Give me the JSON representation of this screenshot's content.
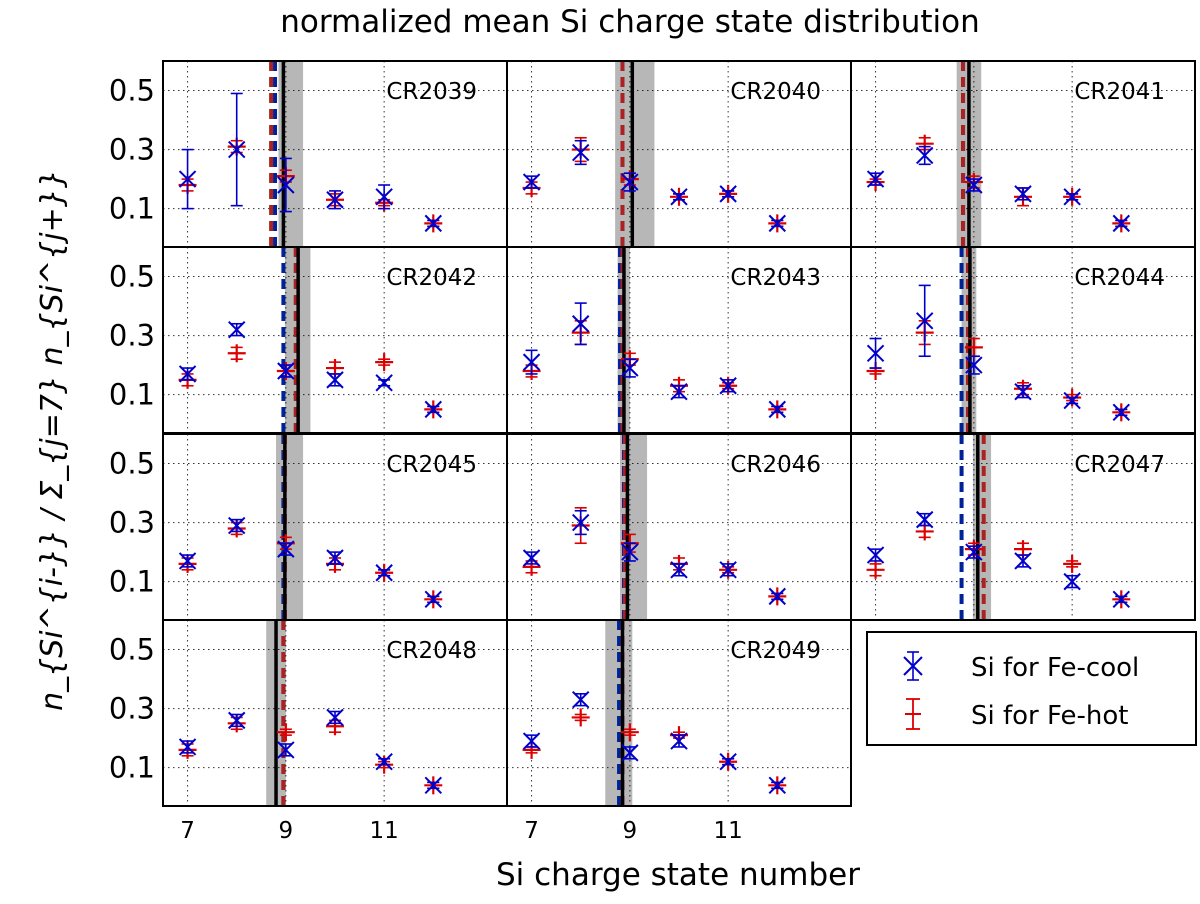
{
  "chart_data": {
    "type": "scatter",
    "title": "normalized mean Si charge state distribution",
    "xlabel": "Si charge state number",
    "ylabel": "n_{Si^{i-}} / Σ_{j=7} n_{Si^{j+}}",
    "xlim": [
      6.5,
      13.5
    ],
    "ylim": [
      -0.03,
      0.6
    ],
    "yticks": [
      0.1,
      0.3,
      0.5
    ],
    "ytick_labels": [
      "0.1",
      "0.3",
      "0.5"
    ],
    "xticks": [
      7,
      9,
      11
    ],
    "xtick_labels": [
      "7",
      "9",
      "11"
    ],
    "x_categories": [
      7,
      8,
      9,
      10,
      11,
      12
    ],
    "grid": true,
    "legend": {
      "position": "bottom-right",
      "entries": [
        {
          "name": "Si for Fe-cool",
          "marker": "x",
          "color": "#0000cc"
        },
        {
          "name": "Si for Fe-hot",
          "marker": "+",
          "color": "#dd0000"
        }
      ]
    },
    "colors": {
      "cool": "#0000cc",
      "hot": "#dd0000",
      "band": "#aaaaaa"
    },
    "panels": [
      {
        "label": "CR2039",
        "black": 8.95,
        "band": [
          8.85,
          9.35
        ],
        "blue_dash": 8.78,
        "red_dash": 8.7,
        "cool": [
          [
            0.2,
            0.1
          ],
          [
            0.3,
            0.19
          ],
          [
            0.18,
            0.09
          ],
          [
            0.13,
            0.03
          ],
          [
            0.14,
            0.04
          ],
          [
            0.05,
            0.01
          ]
        ],
        "hot": [
          [
            0.18,
            0.02
          ],
          [
            0.31,
            0.02
          ],
          [
            0.21,
            0.02
          ],
          [
            0.13,
            0.02
          ],
          [
            0.12,
            0.01
          ],
          [
            0.05,
            0.01
          ]
        ]
      },
      {
        "label": "CR2040",
        "black": 9.05,
        "band": [
          8.7,
          9.5
        ],
        "blue_dash": 8.85,
        "red_dash": 8.85,
        "cool": [
          [
            0.19,
            0.02
          ],
          [
            0.29,
            0.04
          ],
          [
            0.19,
            0.03
          ],
          [
            0.14,
            0.01
          ],
          [
            0.15,
            0.01
          ],
          [
            0.05,
            0.01
          ]
        ],
        "hot": [
          [
            0.17,
            0.02
          ],
          [
            0.3,
            0.04
          ],
          [
            0.2,
            0.02
          ],
          [
            0.14,
            0.01
          ],
          [
            0.15,
            0.01
          ],
          [
            0.05,
            0.01
          ]
        ]
      },
      {
        "label": "CR2041",
        "black": 8.9,
        "band": [
          8.65,
          9.15
        ],
        "blue_dash": 8.78,
        "red_dash": 8.78,
        "cool": [
          [
            0.2,
            0.02
          ],
          [
            0.28,
            0.03
          ],
          [
            0.18,
            0.02
          ],
          [
            0.15,
            0.02
          ],
          [
            0.14,
            0.01
          ],
          [
            0.05,
            0.01
          ]
        ],
        "hot": [
          [
            0.19,
            0.01
          ],
          [
            0.32,
            0.02
          ],
          [
            0.19,
            0.02
          ],
          [
            0.14,
            0.03
          ],
          [
            0.14,
            0.01
          ],
          [
            0.05,
            0.01
          ]
        ]
      },
      {
        "label": "CR2042",
        "black": 9.25,
        "band": [
          8.98,
          9.5
        ],
        "blue_dash": 8.95,
        "red_dash": 9.2,
        "cool": [
          [
            0.17,
            0.02
          ],
          [
            0.32,
            0.02
          ],
          [
            0.18,
            0.02
          ],
          [
            0.15,
            0.02
          ],
          [
            0.14,
            0.01
          ],
          [
            0.05,
            0.01
          ]
        ],
        "hot": [
          [
            0.15,
            0.02
          ],
          [
            0.24,
            0.02
          ],
          [
            0.18,
            0.02
          ],
          [
            0.19,
            0.02
          ],
          [
            0.21,
            0.01
          ],
          [
            0.05,
            0.01
          ]
        ]
      },
      {
        "label": "CR2043",
        "black": 8.88,
        "band": [
          8.75,
          9.0
        ],
        "blue_dash": 8.8,
        "red_dash": 8.85,
        "cool": [
          [
            0.21,
            0.04
          ],
          [
            0.34,
            0.07
          ],
          [
            0.19,
            0.03
          ],
          [
            0.11,
            0.02
          ],
          [
            0.13,
            0.02
          ],
          [
            0.05,
            0.01
          ]
        ],
        "hot": [
          [
            0.18,
            0.02
          ],
          [
            0.31,
            0.04
          ],
          [
            0.22,
            0.02
          ],
          [
            0.13,
            0.02
          ],
          [
            0.13,
            0.01
          ],
          [
            0.05,
            0.01
          ]
        ]
      },
      {
        "label": "CR2044",
        "black": 8.92,
        "band": [
          8.75,
          9.05
        ],
        "blue_dash": 8.75,
        "red_dash": 8.88,
        "cool": [
          [
            0.24,
            0.05
          ],
          [
            0.35,
            0.12
          ],
          [
            0.2,
            0.03
          ],
          [
            0.11,
            0.02
          ],
          [
            0.08,
            0.01
          ],
          [
            0.04,
            0.01
          ]
        ],
        "hot": [
          [
            0.18,
            0.01
          ],
          [
            0.31,
            0.04
          ],
          [
            0.26,
            0.03
          ],
          [
            0.12,
            0.02
          ],
          [
            0.09,
            0.01
          ],
          [
            0.04,
            0.01
          ]
        ]
      },
      {
        "label": "CR2045",
        "black": 8.98,
        "band": [
          8.8,
          9.35
        ],
        "blue_dash": 8.95,
        "red_dash": 8.98,
        "cool": [
          [
            0.17,
            0.02
          ],
          [
            0.29,
            0.02
          ],
          [
            0.21,
            0.02
          ],
          [
            0.18,
            0.02
          ],
          [
            0.13,
            0.01
          ],
          [
            0.04,
            0.01
          ]
        ],
        "hot": [
          [
            0.16,
            0.02
          ],
          [
            0.28,
            0.02
          ],
          [
            0.23,
            0.02
          ],
          [
            0.16,
            0.02
          ],
          [
            0.13,
            0.01
          ],
          [
            0.04,
            0.01
          ]
        ]
      },
      {
        "label": "CR2046",
        "black": 8.95,
        "band": [
          8.8,
          9.35
        ],
        "blue_dash": 8.88,
        "red_dash": 8.9,
        "cool": [
          [
            0.18,
            0.02
          ],
          [
            0.3,
            0.04
          ],
          [
            0.2,
            0.03
          ],
          [
            0.14,
            0.02
          ],
          [
            0.14,
            0.02
          ],
          [
            0.05,
            0.01
          ]
        ],
        "hot": [
          [
            0.15,
            0.02
          ],
          [
            0.29,
            0.06
          ],
          [
            0.23,
            0.03
          ],
          [
            0.16,
            0.02
          ],
          [
            0.14,
            0.01
          ],
          [
            0.05,
            0.01
          ]
        ]
      },
      {
        "label": "CR2047",
        "black": 9.08,
        "band": [
          8.98,
          9.35
        ],
        "blue_dash": 8.75,
        "red_dash": 9.2,
        "cool": [
          [
            0.19,
            0.02
          ],
          [
            0.31,
            0.02
          ],
          [
            0.2,
            0.02
          ],
          [
            0.17,
            0.02
          ],
          [
            0.1,
            0.02
          ],
          [
            0.04,
            0.01
          ]
        ],
        "hot": [
          [
            0.14,
            0.02
          ],
          [
            0.27,
            0.02
          ],
          [
            0.21,
            0.02
          ],
          [
            0.21,
            0.02
          ],
          [
            0.16,
            0.01
          ],
          [
            0.04,
            0.01
          ]
        ]
      },
      {
        "label": "CR2048",
        "black": 8.8,
        "band": [
          8.6,
          9.0
        ],
        "blue_dash": 8.95,
        "red_dash": 8.95,
        "cool": [
          [
            0.17,
            0.02
          ],
          [
            0.26,
            0.02
          ],
          [
            0.16,
            0.02
          ],
          [
            0.27,
            0.02
          ],
          [
            0.12,
            0.01
          ],
          [
            0.04,
            0.01
          ]
        ],
        "hot": [
          [
            0.16,
            0.02
          ],
          [
            0.25,
            0.02
          ],
          [
            0.22,
            0.01
          ],
          [
            0.24,
            0.02
          ],
          [
            0.11,
            0.01
          ],
          [
            0.04,
            0.01
          ]
        ]
      },
      {
        "label": "CR2049",
        "black": 8.85,
        "band": [
          8.5,
          9.05
        ],
        "blue_dash": 8.78,
        "red_dash": 8.85,
        "cool": [
          [
            0.19,
            0.02
          ],
          [
            0.33,
            0.02
          ],
          [
            0.15,
            0.02
          ],
          [
            0.19,
            0.02
          ],
          [
            0.12,
            0.01
          ],
          [
            0.04,
            0.01
          ]
        ],
        "hot": [
          [
            0.16,
            0.01
          ],
          [
            0.27,
            0.01
          ],
          [
            0.22,
            0.01
          ],
          [
            0.21,
            0.01
          ],
          [
            0.12,
            0.01
          ],
          [
            0.04,
            0.01
          ]
        ]
      }
    ]
  }
}
